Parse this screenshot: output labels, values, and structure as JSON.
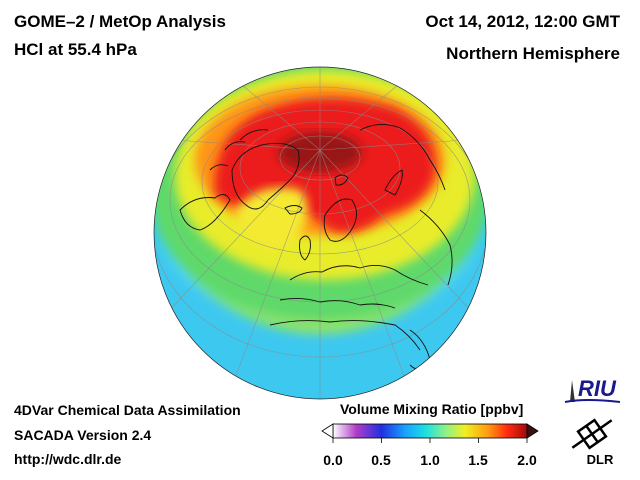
{
  "header": {
    "title": "GOME–2 / MetOp Analysis",
    "species": "HCl at 55.4 hPa",
    "datetime": "Oct 14, 2012, 12:00 GMT",
    "region": "Northern Hemisphere"
  },
  "footer": {
    "line1": "4DVar Chemical Data Assimilation",
    "line2": "SACADA Version 2.4",
    "line3": "http://wdc.dlr.de"
  },
  "colorbar": {
    "title": "Volume Mixing Ratio [ppbv]",
    "ticks": [
      "0.0",
      "0.5",
      "1.0",
      "1.5",
      "2.0"
    ],
    "min": 0.0,
    "max": 2.0,
    "colors": [
      "#ffffff",
      "#b03cc8",
      "#2030e0",
      "#19a0ff",
      "#20e0e0",
      "#8df08a",
      "#f0f020",
      "#ff9a10",
      "#ff2a10",
      "#a00a0a"
    ]
  },
  "logos": {
    "riu": "RIU",
    "dlr": "DLR"
  },
  "colors": {
    "polar_max": "#9a1818",
    "high": "#ee1a1a",
    "mid": "#f4ee22",
    "low": "#4fd4f2"
  }
}
